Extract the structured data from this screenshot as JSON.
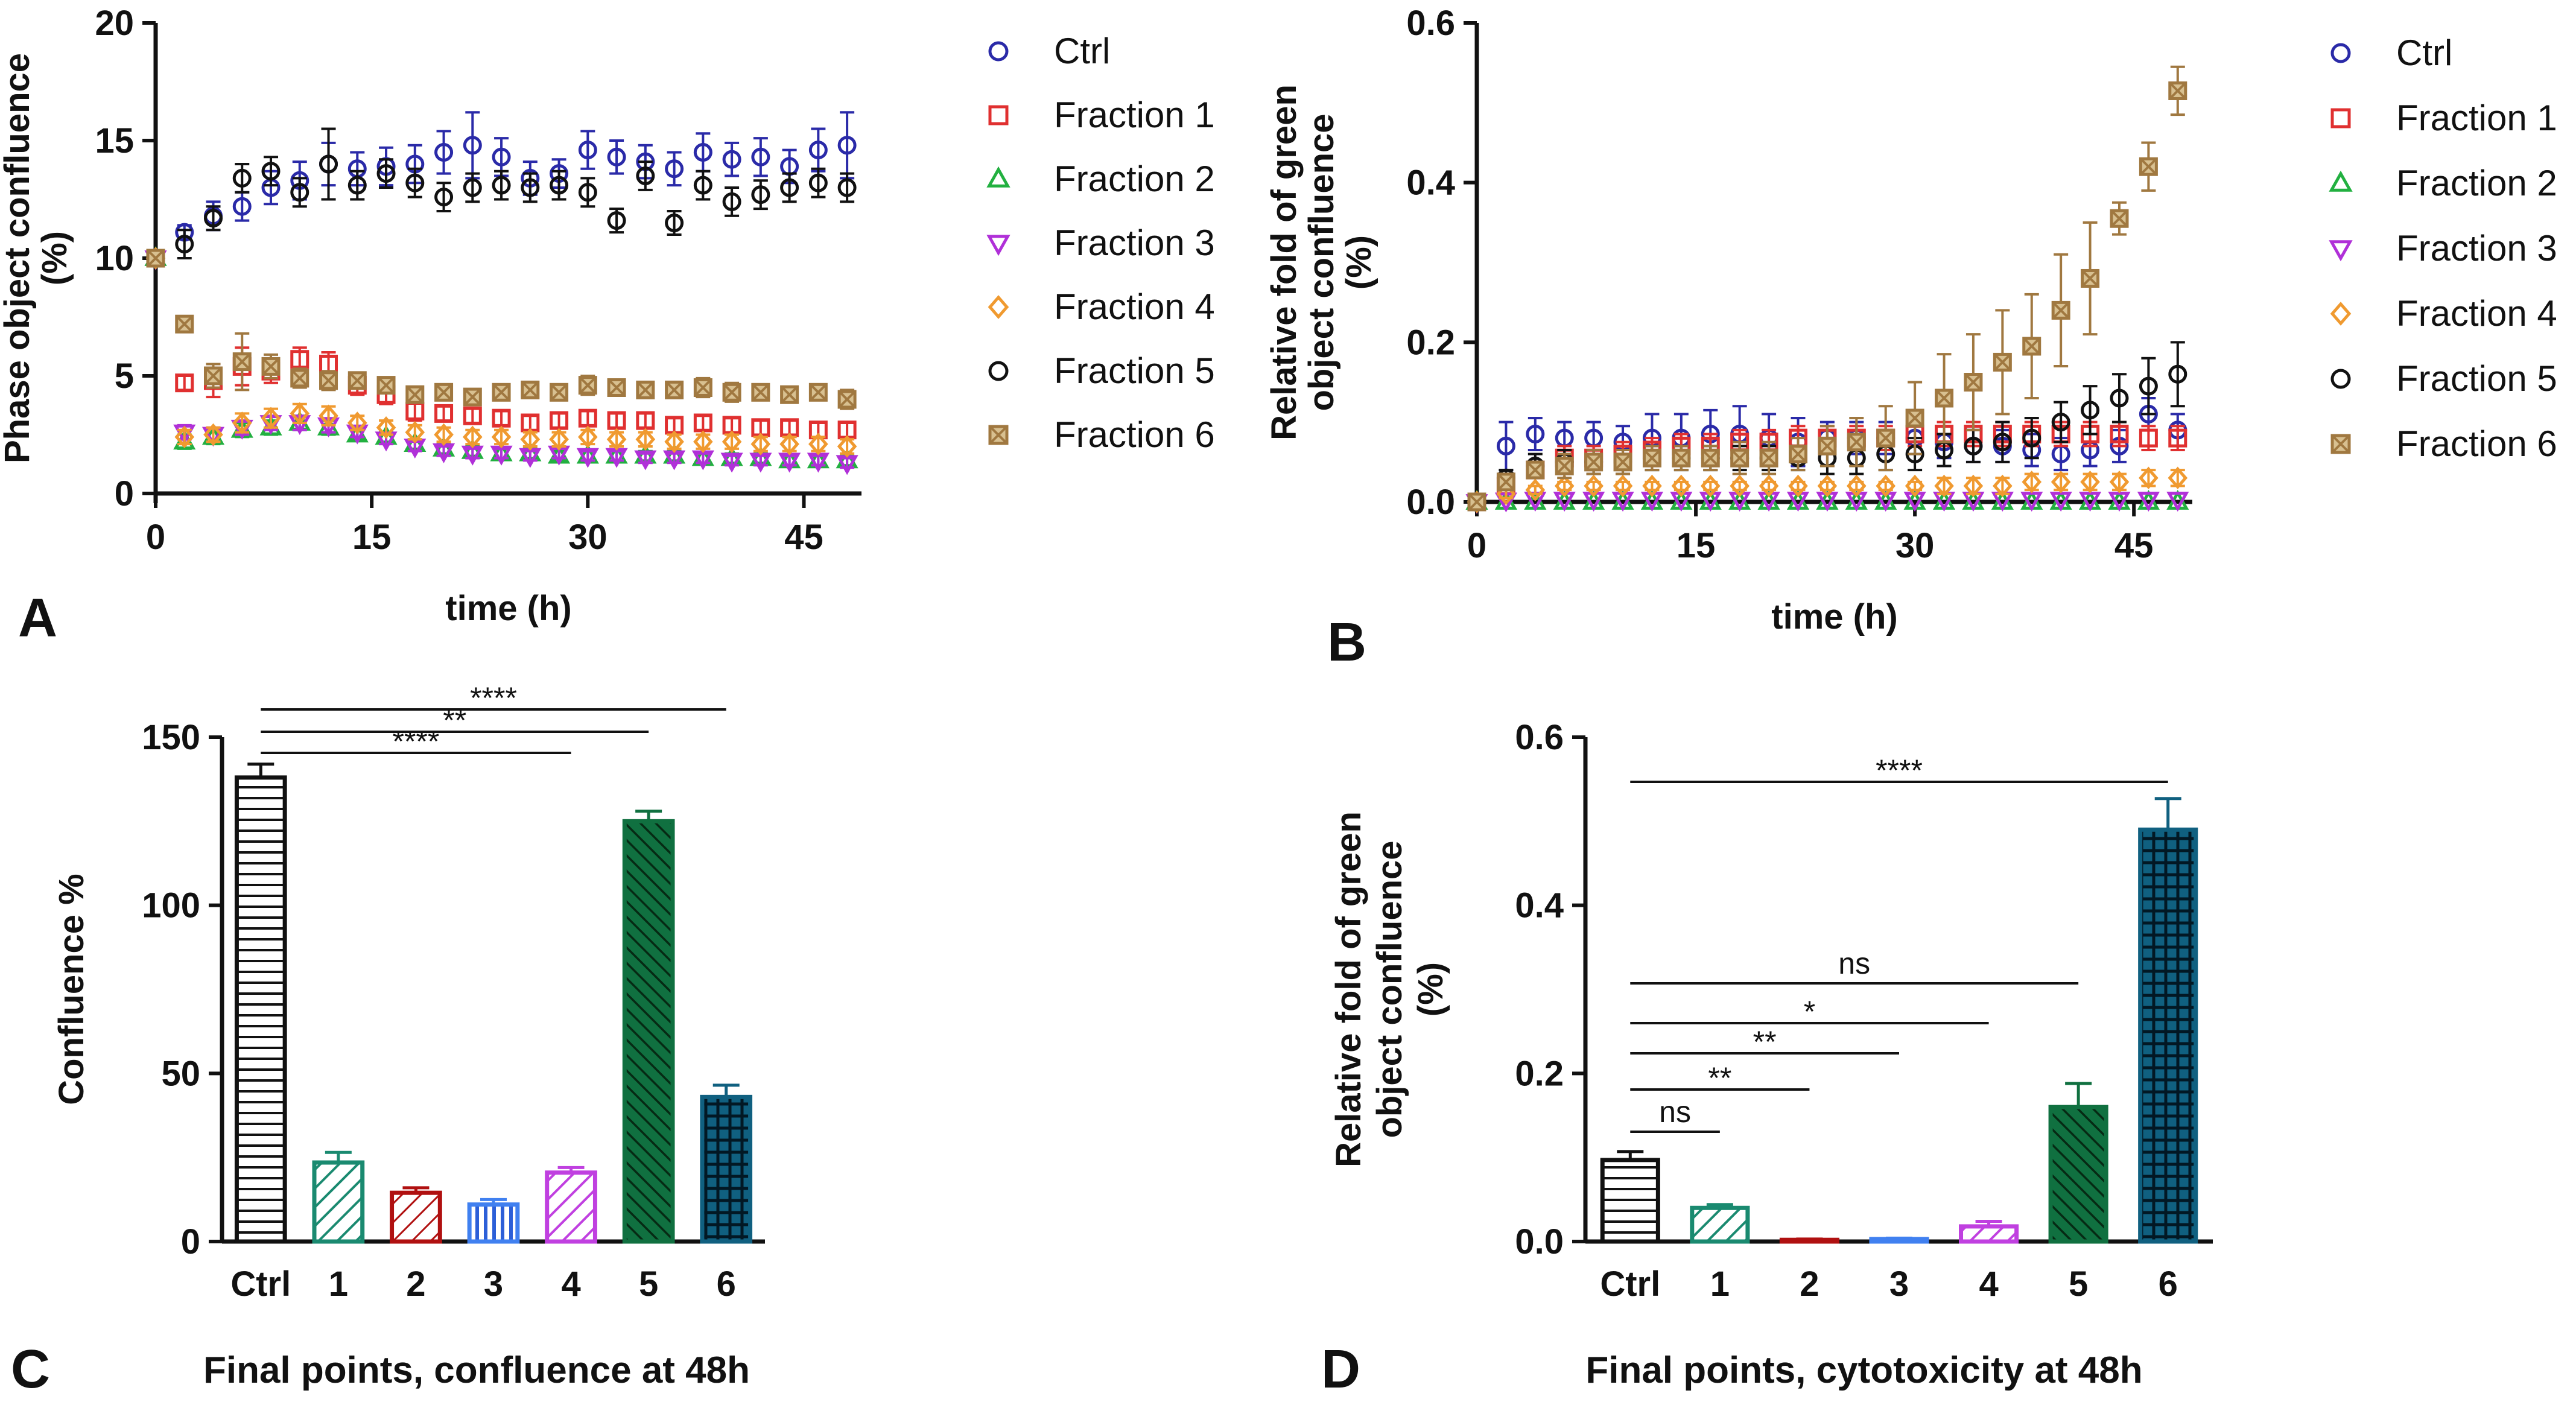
{
  "figure": {
    "panels": {
      "A": {
        "letter": "A",
        "caption": ""
      },
      "B": {
        "letter": "B",
        "caption": ""
      },
      "C": {
        "letter": "C",
        "caption": "Final points, confluence at 48h"
      },
      "D": {
        "letter": "D",
        "caption": "Final points, cytotoxicity at 48h"
      }
    }
  },
  "chart_data": [
    {
      "id": "A",
      "type": "scatter",
      "title": "",
      "xlabel": "time (h)",
      "ylabel_lines": [
        "Phase object confluence",
        "(%)"
      ],
      "xlim": [
        0,
        49
      ],
      "ylim": [
        0,
        20
      ],
      "xticks": [
        0,
        15,
        30,
        45
      ],
      "yticks": [
        0,
        5,
        10,
        15,
        20
      ],
      "x": [
        0,
        2,
        4,
        6,
        8,
        10,
        12,
        14,
        16,
        18,
        20,
        22,
        24,
        26,
        28,
        30,
        32,
        34,
        36,
        38,
        40,
        42,
        44,
        46,
        48
      ],
      "series": [
        {
          "name": "Ctrl",
          "marker": "circle",
          "color": "#2a2aa8",
          "values": [
            10,
            11.1,
            11.8,
            12.2,
            13.0,
            13.3,
            14.0,
            13.8,
            13.9,
            14.0,
            14.5,
            14.8,
            14.3,
            13.4,
            13.6,
            14.6,
            14.3,
            14.1,
            13.8,
            14.5,
            14.2,
            14.3,
            13.9,
            14.6,
            14.8
          ],
          "errors": [
            0,
            0.3,
            0.6,
            0.6,
            0.7,
            0.8,
            0.9,
            0.7,
            0.8,
            0.8,
            0.9,
            1.4,
            0.8,
            0.7,
            0.6,
            0.8,
            0.7,
            0.7,
            0.7,
            0.8,
            0.7,
            0.8,
            0.7,
            0.9,
            1.4
          ]
        },
        {
          "name": "Fraction 1",
          "marker": "square",
          "color": "#e03030",
          "values": [
            10,
            4.7,
            4.8,
            5.4,
            5.2,
            5.7,
            5.5,
            4.6,
            4.2,
            3.5,
            3.4,
            3.3,
            3.2,
            3.0,
            3.1,
            3.2,
            3.1,
            3.1,
            2.9,
            3.0,
            2.9,
            2.8,
            2.8,
            2.7,
            2.7
          ],
          "errors": [
            0,
            0.3,
            0.7,
            0.8,
            0.5,
            0.5,
            0.5,
            0.4,
            0.4,
            0.4,
            0.3,
            0.3,
            0.3,
            0.3,
            0.3,
            0.3,
            0.3,
            0.3,
            0.3,
            0.3,
            0.3,
            0.3,
            0.3,
            0.3,
            0.3
          ]
        },
        {
          "name": "Fraction 2",
          "marker": "triangle-up",
          "color": "#22b040",
          "values": [
            10,
            2.2,
            2.4,
            2.7,
            2.8,
            3.0,
            2.8,
            2.5,
            2.4,
            2.1,
            1.9,
            1.8,
            1.7,
            1.7,
            1.6,
            1.6,
            1.6,
            1.6,
            1.6,
            1.5,
            1.5,
            1.5,
            1.4,
            1.4,
            1.4
          ],
          "errors": [
            0,
            0.3,
            0.3,
            0.3,
            0.3,
            0.3,
            0.3,
            0.2,
            0.2,
            0.2,
            0.2,
            0.2,
            0.2,
            0.2,
            0.2,
            0.2,
            0.2,
            0.2,
            0.2,
            0.2,
            0.2,
            0.2,
            0.2,
            0.2,
            0.2
          ]
        },
        {
          "name": "Fraction 3",
          "marker": "triangle-down",
          "color": "#b030d8",
          "values": [
            10,
            2.6,
            2.5,
            2.8,
            3.0,
            3.0,
            2.9,
            2.6,
            2.3,
            2.0,
            1.8,
            1.7,
            1.7,
            1.6,
            1.7,
            1.6,
            1.6,
            1.5,
            1.5,
            1.5,
            1.4,
            1.4,
            1.4,
            1.4,
            1.3
          ],
          "errors": [
            0,
            0.3,
            0.3,
            0.3,
            0.3,
            0.3,
            0.3,
            0.2,
            0.2,
            0.2,
            0.2,
            0.2,
            0.2,
            0.2,
            0.2,
            0.2,
            0.2,
            0.2,
            0.2,
            0.2,
            0.2,
            0.2,
            0.2,
            0.2,
            0.2
          ]
        },
        {
          "name": "Fraction 4",
          "marker": "diamond",
          "color": "#f09a30",
          "values": [
            10,
            2.4,
            2.5,
            3.0,
            3.2,
            3.4,
            3.3,
            3.0,
            2.8,
            2.6,
            2.5,
            2.4,
            2.4,
            2.3,
            2.3,
            2.4,
            2.3,
            2.3,
            2.2,
            2.2,
            2.2,
            2.1,
            2.1,
            2.1,
            2.0
          ],
          "errors": [
            0,
            0.3,
            0.3,
            0.4,
            0.4,
            0.4,
            0.4,
            0.3,
            0.3,
            0.3,
            0.3,
            0.3,
            0.3,
            0.3,
            0.3,
            0.3,
            0.3,
            0.3,
            0.3,
            0.3,
            0.3,
            0.3,
            0.3,
            0.3,
            0.3
          ]
        },
        {
          "name": "Fraction 5",
          "marker": "circle",
          "color": "#111111",
          "values": [
            10,
            10.6,
            11.7,
            13.4,
            13.7,
            12.8,
            14.0,
            13.1,
            13.6,
            13.2,
            12.6,
            13.0,
            13.1,
            13.0,
            13.1,
            12.8,
            11.6,
            13.5,
            11.5,
            13.1,
            12.4,
            12.7,
            13.0,
            13.2,
            13.0
          ],
          "errors": [
            0,
            0.6,
            0.5,
            0.6,
            0.6,
            0.6,
            1.5,
            0.6,
            0.6,
            0.6,
            0.6,
            0.6,
            0.6,
            0.6,
            0.6,
            0.6,
            0.5,
            0.6,
            0.5,
            0.6,
            0.6,
            0.6,
            0.6,
            0.6,
            0.6
          ]
        },
        {
          "name": "Fraction 6",
          "marker": "square-x",
          "color": "#a07840",
          "values": [
            10,
            7.2,
            5.0,
            5.6,
            5.4,
            4.9,
            4.8,
            4.8,
            4.6,
            4.2,
            4.3,
            4.1,
            4.3,
            4.4,
            4.3,
            4.6,
            4.5,
            4.4,
            4.4,
            4.5,
            4.3,
            4.3,
            4.2,
            4.3,
            4.0
          ],
          "errors": [
            0,
            0.3,
            0.5,
            1.2,
            0.5,
            0.4,
            0.4,
            0.3,
            0.3,
            0.3,
            0.3,
            0.3,
            0.3,
            0.3,
            0.3,
            0.4,
            0.3,
            0.3,
            0.3,
            0.4,
            0.4,
            0.3,
            0.3,
            0.3,
            0.4
          ]
        }
      ]
    },
    {
      "id": "B",
      "type": "scatter",
      "title": "",
      "xlabel": "time (h)",
      "ylabel_lines": [
        "Relative fold of green",
        "object  confluence",
        "(%)"
      ],
      "xlim": [
        0,
        49
      ],
      "ylim": [
        0,
        0.6
      ],
      "xticks": [
        0,
        15,
        30,
        45
      ],
      "yticks": [
        0.0,
        0.2,
        0.4,
        0.6
      ],
      "ytick_labels": [
        "0.0",
        "0.2",
        "0.4",
        "0.6"
      ],
      "x": [
        0,
        2,
        4,
        6,
        8,
        10,
        12,
        14,
        16,
        18,
        20,
        22,
        24,
        26,
        28,
        30,
        32,
        34,
        36,
        38,
        40,
        42,
        44,
        46,
        48
      ],
      "series": [
        {
          "name": "Ctrl",
          "marker": "circle",
          "color": "#2a2aa8",
          "values": [
            0,
            0.07,
            0.085,
            0.08,
            0.08,
            0.075,
            0.08,
            0.08,
            0.085,
            0.085,
            0.08,
            0.075,
            0.08,
            0.08,
            0.08,
            0.08,
            0.075,
            0.07,
            0.07,
            0.065,
            0.06,
            0.065,
            0.07,
            0.11,
            0.09
          ],
          "errors": [
            0,
            0.03,
            0.02,
            0.02,
            0.02,
            0.02,
            0.03,
            0.03,
            0.03,
            0.035,
            0.03,
            0.03,
            0.02,
            0.02,
            0.02,
            0.02,
            0.02,
            0.02,
            0.02,
            0.02,
            0.02,
            0.02,
            0.02,
            0.02,
            0.02
          ]
        },
        {
          "name": "Fraction 1",
          "marker": "square",
          "color": "#e03030",
          "values": [
            0,
            0.02,
            0.04,
            0.055,
            0.055,
            0.06,
            0.065,
            0.07,
            0.07,
            0.075,
            0.075,
            0.08,
            0.08,
            0.08,
            0.08,
            0.085,
            0.085,
            0.085,
            0.085,
            0.085,
            0.085,
            0.085,
            0.085,
            0.08,
            0.08
          ],
          "errors": [
            0,
            0.01,
            0.01,
            0.015,
            0.015,
            0.015,
            0.015,
            0.015,
            0.015,
            0.015,
            0.015,
            0.015,
            0.015,
            0.015,
            0.015,
            0.015,
            0.015,
            0.015,
            0.015,
            0.015,
            0.015,
            0.015,
            0.015,
            0.015,
            0.015
          ]
        },
        {
          "name": "Fraction 2",
          "marker": "triangle-up",
          "color": "#22b040",
          "values": [
            0,
            0.0,
            0.0,
            0.0,
            0.0,
            0.0,
            0.0,
            0.0,
            0.0,
            0.0,
            0.0,
            0.0,
            0.0,
            0.0,
            0.0,
            0.0,
            0.0,
            0.0,
            0.0,
            0.0,
            0.0,
            0.0,
            0.0,
            0.0,
            0.0
          ],
          "errors": [
            0,
            0,
            0,
            0,
            0,
            0,
            0,
            0,
            0,
            0,
            0,
            0,
            0,
            0,
            0,
            0,
            0,
            0,
            0,
            0,
            0,
            0,
            0,
            0,
            0
          ]
        },
        {
          "name": "Fraction 3",
          "marker": "triangle-down",
          "color": "#b030d8",
          "values": [
            0,
            0.002,
            0.003,
            0.003,
            0.003,
            0.003,
            0.003,
            0.003,
            0.003,
            0.003,
            0.003,
            0.003,
            0.003,
            0.003,
            0.003,
            0.003,
            0.003,
            0.003,
            0.003,
            0.003,
            0.003,
            0.003,
            0.003,
            0.003,
            0.003
          ],
          "errors": [
            0,
            0,
            0,
            0,
            0,
            0,
            0,
            0,
            0,
            0,
            0,
            0,
            0,
            0,
            0,
            0,
            0,
            0,
            0,
            0,
            0,
            0,
            0,
            0,
            0
          ]
        },
        {
          "name": "Fraction 4",
          "marker": "diamond",
          "color": "#f09a30",
          "values": [
            0,
            0.01,
            0.015,
            0.02,
            0.02,
            0.02,
            0.02,
            0.02,
            0.02,
            0.02,
            0.02,
            0.02,
            0.02,
            0.02,
            0.02,
            0.02,
            0.02,
            0.02,
            0.02,
            0.025,
            0.025,
            0.025,
            0.025,
            0.03,
            0.03
          ],
          "errors": [
            0,
            0.005,
            0.005,
            0.005,
            0.005,
            0.005,
            0.005,
            0.005,
            0.005,
            0.005,
            0.005,
            0.005,
            0.005,
            0.005,
            0.005,
            0.005,
            0.01,
            0.01,
            0.01,
            0.01,
            0.01,
            0.01,
            0.01,
            0.01,
            0.01
          ]
        },
        {
          "name": "Fraction 5",
          "marker": "circle",
          "color": "#111111",
          "values": [
            0,
            0.03,
            0.045,
            0.05,
            0.05,
            0.05,
            0.055,
            0.055,
            0.055,
            0.055,
            0.055,
            0.055,
            0.055,
            0.055,
            0.06,
            0.06,
            0.065,
            0.07,
            0.075,
            0.08,
            0.1,
            0.115,
            0.13,
            0.145,
            0.16
          ],
          "errors": [
            0,
            0.01,
            0.015,
            0.015,
            0.015,
            0.015,
            0.015,
            0.015,
            0.015,
            0.015,
            0.015,
            0.015,
            0.02,
            0.02,
            0.02,
            0.02,
            0.02,
            0.02,
            0.025,
            0.025,
            0.025,
            0.03,
            0.03,
            0.035,
            0.04
          ]
        },
        {
          "name": "Fraction 6",
          "marker": "square-x",
          "color": "#a07840",
          "values": [
            0,
            0.025,
            0.04,
            0.045,
            0.05,
            0.05,
            0.055,
            0.055,
            0.055,
            0.055,
            0.055,
            0.06,
            0.07,
            0.075,
            0.08,
            0.105,
            0.13,
            0.15,
            0.175,
            0.195,
            0.24,
            0.28,
            0.355,
            0.42,
            0.515
          ],
          "errors": [
            0,
            0.01,
            0.01,
            0.015,
            0.015,
            0.015,
            0.015,
            0.015,
            0.015,
            0.02,
            0.02,
            0.02,
            0.025,
            0.03,
            0.04,
            0.045,
            0.055,
            0.06,
            0.065,
            0.065,
            0.07,
            0.07,
            0.02,
            0.03,
            0.03
          ]
        }
      ]
    },
    {
      "id": "C",
      "type": "bar",
      "title": "Final points, confluence at 48h",
      "xlabel": "",
      "ylabel": "Confluence %",
      "ylim": [
        0,
        150
      ],
      "yticks": [
        0,
        50,
        100,
        150
      ],
      "categories": [
        "Ctrl",
        "1",
        "2",
        "3",
        "4",
        "5",
        "6"
      ],
      "values": [
        138,
        23.5,
        14.5,
        11,
        20.5,
        125,
        43
      ],
      "errors": [
        4,
        3,
        1.5,
        1.5,
        1.5,
        3,
        3.5
      ],
      "colors": [
        "#111111",
        "#1a8a70",
        "#b01010",
        "#4080f0",
        "#c040e0",
        "#107040",
        "#106080"
      ],
      "patterns": [
        "hlines",
        "diag-right",
        "diag-right",
        "vlines",
        "diag-right",
        "diag-left-dense",
        "grid"
      ],
      "significance": [
        {
          "from": 0,
          "to": 4,
          "label": "****"
        },
        {
          "from": 0,
          "to": 5,
          "label": "**"
        },
        {
          "from": 0,
          "to": 6,
          "label": "****"
        }
      ]
    },
    {
      "id": "D",
      "type": "bar",
      "title": "Final points, cytotoxicity at 48h",
      "xlabel": "",
      "ylabel_lines": [
        "Relative fold of green",
        "object confluence",
        "(%)"
      ],
      "ylim": [
        0,
        0.6
      ],
      "yticks": [
        0.0,
        0.2,
        0.4,
        0.6
      ],
      "ytick_labels": [
        "0.0",
        "0.2",
        "0.4",
        "0.6"
      ],
      "categories": [
        "Ctrl",
        "1",
        "2",
        "3",
        "4",
        "5",
        "6"
      ],
      "values": [
        0.097,
        0.04,
        0.002,
        0.003,
        0.018,
        0.16,
        0.49
      ],
      "errors": [
        0.01,
        0.004,
        0.001,
        0.001,
        0.006,
        0.028,
        0.037
      ],
      "colors": [
        "#111111",
        "#1a8a70",
        "#b01010",
        "#4080f0",
        "#c040e0",
        "#107040",
        "#106080"
      ],
      "patterns": [
        "hlines",
        "diag-right",
        "diag-right",
        "vlines",
        "diag-right",
        "diag-left-dense",
        "grid"
      ],
      "significance": [
        {
          "from": 0,
          "to": 1,
          "label": "ns"
        },
        {
          "from": 0,
          "to": 2,
          "label": "**"
        },
        {
          "from": 0,
          "to": 3,
          "label": "**"
        },
        {
          "from": 0,
          "to": 4,
          "label": "*"
        },
        {
          "from": 0,
          "to": 5,
          "label": "ns"
        },
        {
          "from": 0,
          "to": 6,
          "label": "****"
        }
      ]
    }
  ]
}
